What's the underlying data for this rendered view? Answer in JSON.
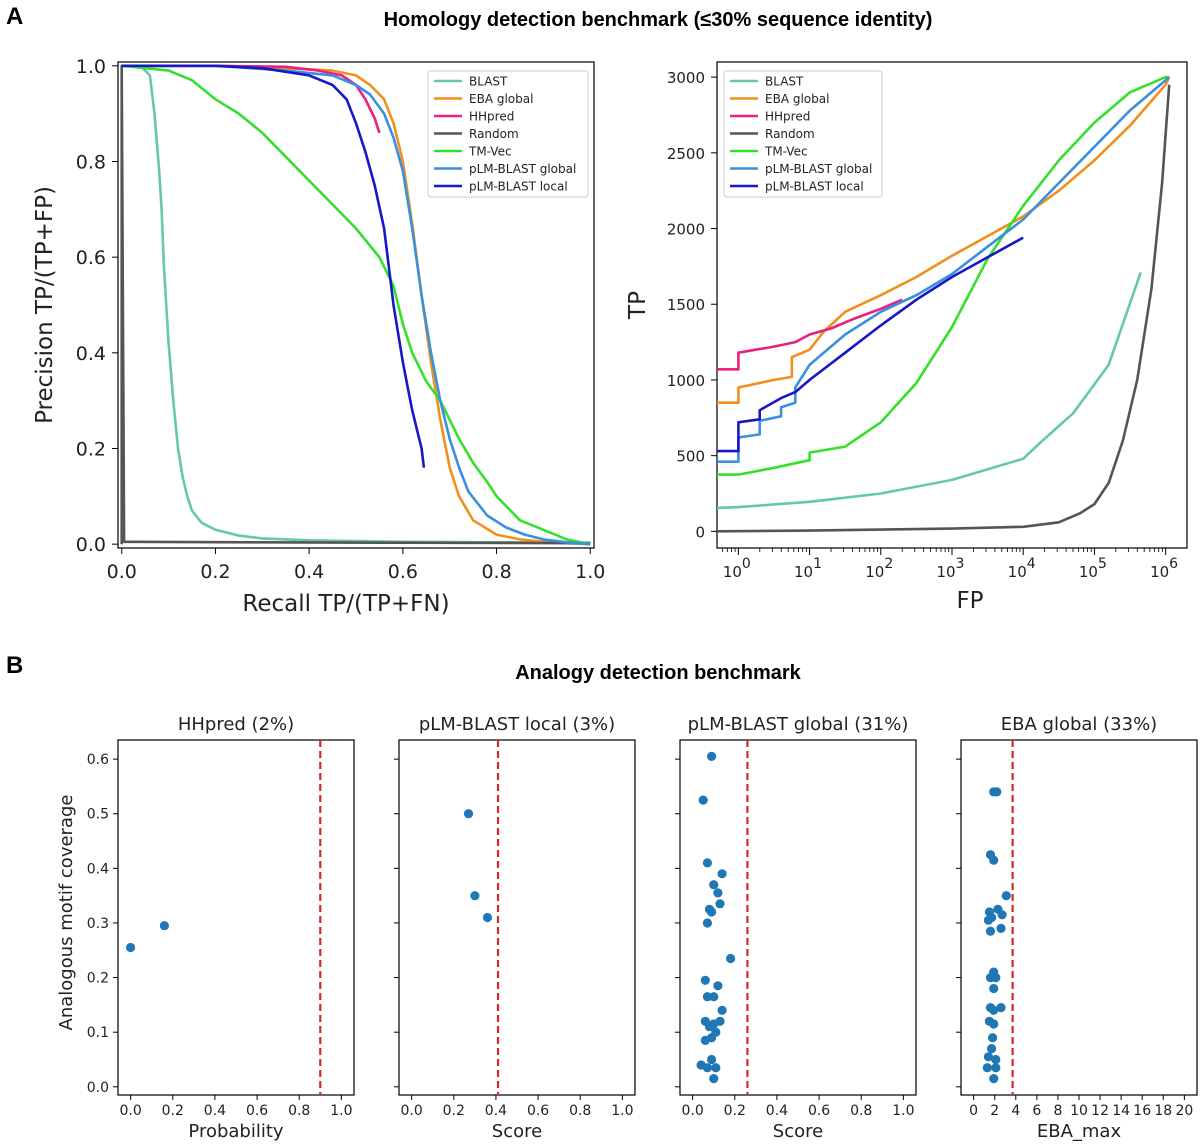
{
  "figure": {
    "panel_a_letter": "A",
    "panel_b_letter": "B",
    "panel_a_title": "Homology detection benchmark (≤30% sequence identity)",
    "panel_b_title": "Analogy detection benchmark"
  },
  "colors": {
    "BLAST": "#66c9a6",
    "EBA global": "#f0901e",
    "HHpred": "#e9207e",
    "Random": "#555555",
    "TM-Vec": "#33e02a",
    "pLM-BLAST global": "#3a90dc",
    "pLM-BLAST local": "#1717c8",
    "threshold": "#d62728",
    "points": "#1f77b4"
  },
  "chart_data": [
    {
      "type": "line",
      "xlabel": "Recall TP/(TP+FN)",
      "ylabel": "Precision TP/(TP+FP)",
      "xlim": [
        0,
        1
      ],
      "ylim": [
        0,
        1
      ],
      "xticks": [
        0,
        0.2,
        0.4,
        0.6,
        0.8,
        1.0
      ],
      "yticks": [
        0,
        0.2,
        0.4,
        0.6,
        0.8,
        1.0
      ],
      "xtick_labels": [
        "0.0",
        "0.2",
        "0.4",
        "0.6",
        "0.8",
        "1.0"
      ],
      "ytick_labels": [
        "0.0",
        "0.2",
        "0.4",
        "0.6",
        "0.8",
        "1.0"
      ],
      "legend_position": "top-right",
      "series": [
        {
          "name": "BLAST",
          "x": [
            0.04,
            0.06,
            0.07,
            0.08,
            0.085,
            0.09,
            0.1,
            0.11,
            0.12,
            0.13,
            0.14,
            0.15,
            0.17,
            0.2,
            0.25,
            0.3,
            0.4,
            0.6,
            0.8,
            1.0
          ],
          "y": [
            1.0,
            0.98,
            0.9,
            0.78,
            0.7,
            0.58,
            0.42,
            0.3,
            0.2,
            0.14,
            0.1,
            0.07,
            0.045,
            0.03,
            0.018,
            0.012,
            0.008,
            0.005,
            0.004,
            0.003
          ]
        },
        {
          "name": "EBA global",
          "x": [
            0.0,
            0.2,
            0.35,
            0.45,
            0.5,
            0.53,
            0.56,
            0.58,
            0.6,
            0.62,
            0.64,
            0.66,
            0.68,
            0.7,
            0.72,
            0.75,
            0.8,
            0.85,
            0.9,
            0.95,
            1.0
          ],
          "y": [
            1.0,
            1.0,
            0.995,
            0.99,
            0.98,
            0.96,
            0.93,
            0.88,
            0.8,
            0.67,
            0.52,
            0.38,
            0.26,
            0.16,
            0.1,
            0.05,
            0.02,
            0.01,
            0.005,
            0.002,
            0.0
          ]
        },
        {
          "name": "HHpred",
          "x": [
            0.0,
            0.2,
            0.35,
            0.42,
            0.47,
            0.5,
            0.52,
            0.54,
            0.55
          ],
          "y": [
            1.0,
            1.0,
            0.998,
            0.99,
            0.98,
            0.96,
            0.93,
            0.89,
            0.86
          ]
        },
        {
          "name": "Random",
          "x": [
            0.0,
            0.0,
            0.005,
            0.3,
            0.6,
            1.0
          ],
          "y": [
            0.0,
            1.0,
            0.005,
            0.004,
            0.003,
            0.002
          ]
        },
        {
          "name": "TM-Vec",
          "x": [
            0.0,
            0.1,
            0.15,
            0.2,
            0.25,
            0.3,
            0.35,
            0.4,
            0.45,
            0.5,
            0.55,
            0.58,
            0.6,
            0.62,
            0.65,
            0.68,
            0.7,
            0.72,
            0.75,
            0.78,
            0.8,
            0.85,
            0.9,
            0.95,
            1.0
          ],
          "y": [
            1.0,
            0.99,
            0.97,
            0.93,
            0.9,
            0.86,
            0.81,
            0.76,
            0.71,
            0.66,
            0.6,
            0.54,
            0.46,
            0.4,
            0.34,
            0.3,
            0.26,
            0.22,
            0.17,
            0.13,
            0.1,
            0.05,
            0.03,
            0.01,
            0.0
          ]
        },
        {
          "name": "pLM-BLAST global",
          "x": [
            0.0,
            0.2,
            0.35,
            0.45,
            0.5,
            0.53,
            0.56,
            0.58,
            0.6,
            0.62,
            0.64,
            0.66,
            0.68,
            0.7,
            0.72,
            0.74,
            0.78,
            0.82,
            0.86,
            0.9,
            0.95,
            1.0
          ],
          "y": [
            1.0,
            1.0,
            0.99,
            0.98,
            0.96,
            0.94,
            0.9,
            0.85,
            0.78,
            0.66,
            0.52,
            0.4,
            0.3,
            0.22,
            0.16,
            0.11,
            0.06,
            0.035,
            0.02,
            0.01,
            0.004,
            0.0
          ]
        },
        {
          "name": "pLM-BLAST local",
          "x": [
            0.0,
            0.2,
            0.3,
            0.4,
            0.45,
            0.48,
            0.5,
            0.52,
            0.54,
            0.56,
            0.57,
            0.58,
            0.59,
            0.6,
            0.61,
            0.62,
            0.63,
            0.64,
            0.645
          ],
          "y": [
            1.0,
            1.0,
            0.995,
            0.98,
            0.96,
            0.93,
            0.88,
            0.82,
            0.75,
            0.66,
            0.58,
            0.5,
            0.44,
            0.38,
            0.33,
            0.28,
            0.24,
            0.2,
            0.16
          ]
        }
      ]
    },
    {
      "type": "line",
      "xlabel": "FP",
      "ylabel": "TP",
      "xscale": "log",
      "xlim_log10": [
        -0.3,
        6.3
      ],
      "ylim": [
        -110,
        3100
      ],
      "xticks": [
        0,
        1,
        2,
        3,
        4,
        5,
        6
      ],
      "xtick_labels": [
        "10",
        "10",
        "10",
        "10",
        "10",
        "10",
        "10"
      ],
      "xtick_exponents": [
        "0",
        "1",
        "2",
        "3",
        "4",
        "5",
        "6"
      ],
      "yticks": [
        0,
        500,
        1000,
        1500,
        2000,
        2500,
        3000
      ],
      "ytick_labels": [
        "0",
        "500",
        "1000",
        "1500",
        "2000",
        "2500",
        "3000"
      ],
      "legend_position": "top-left",
      "series": [
        {
          "name": "BLAST",
          "log10_fp": [
            -0.3,
            0.0,
            1.0,
            2.0,
            3.0,
            4.0,
            4.25,
            4.7,
            5.2,
            5.65
          ],
          "tp": [
            155,
            160,
            195,
            250,
            340,
            480,
            590,
            780,
            1100,
            1710
          ]
        },
        {
          "name": "EBA global",
          "log10_fp": [
            -0.3,
            0.0,
            0.0,
            0.5,
            0.75,
            0.75,
            1.0,
            1.2,
            1.5,
            2.0,
            2.5,
            3.0,
            3.5,
            4.0,
            4.5,
            5.0,
            5.5,
            6.0,
            6.05
          ],
          "tp": [
            850,
            850,
            950,
            1000,
            1020,
            1150,
            1200,
            1320,
            1450,
            1560,
            1680,
            1820,
            1950,
            2080,
            2250,
            2450,
            2680,
            2950,
            3000
          ]
        },
        {
          "name": "HHpred",
          "log10_fp": [
            -0.3,
            0.0,
            0.0,
            0.5,
            0.8,
            1.0,
            1.3,
            1.6,
            2.0,
            2.3
          ],
          "tp": [
            1070,
            1070,
            1180,
            1220,
            1250,
            1300,
            1340,
            1400,
            1470,
            1530
          ]
        },
        {
          "name": "Random",
          "log10_fp": [
            -0.3,
            1.0,
            3.0,
            4.0,
            4.5,
            4.8,
            5.0,
            5.2,
            5.4,
            5.6,
            5.8,
            5.95,
            6.05
          ],
          "tp": [
            0,
            5,
            18,
            30,
            60,
            120,
            180,
            320,
            600,
            1000,
            1600,
            2300,
            2950
          ]
        },
        {
          "name": "TM-Vec",
          "log10_fp": [
            -0.3,
            0.0,
            0.5,
            1.0,
            1.0,
            1.5,
            2.0,
            2.5,
            3.0,
            3.5,
            4.0,
            4.5,
            5.0,
            5.5,
            6.0,
            6.05
          ],
          "tp": [
            375,
            375,
            420,
            470,
            520,
            560,
            720,
            980,
            1350,
            1800,
            2150,
            2450,
            2700,
            2900,
            3000,
            3000
          ]
        },
        {
          "name": "pLM-BLAST global",
          "log10_fp": [
            -0.3,
            0.0,
            0.0,
            0.3,
            0.3,
            0.6,
            0.6,
            0.8,
            0.8,
            1.0,
            1.5,
            2.0,
            2.5,
            3.0,
            3.5,
            4.0,
            4.5,
            5.0,
            5.5,
            6.0,
            6.05
          ],
          "tp": [
            460,
            460,
            620,
            640,
            730,
            760,
            820,
            850,
            950,
            1100,
            1300,
            1450,
            1560,
            1700,
            1880,
            2060,
            2300,
            2540,
            2780,
            2980,
            3000
          ]
        },
        {
          "name": "pLM-BLAST local",
          "log10_fp": [
            -0.3,
            0.0,
            0.0,
            0.3,
            0.3,
            0.6,
            0.8,
            1.0,
            1.5,
            2.0,
            2.5,
            3.0,
            3.5,
            4.0
          ],
          "tp": [
            530,
            530,
            720,
            740,
            800,
            880,
            920,
            1000,
            1180,
            1360,
            1530,
            1680,
            1810,
            1940
          ]
        }
      ]
    },
    {
      "type": "scatter",
      "title": "HHpred (2%)",
      "xlabel": "Probability",
      "ylabel": "Analogous motif coverage",
      "xlim": [
        -0.06,
        1.06
      ],
      "ylim": [
        -0.015,
        0.635
      ],
      "xticks": [
        0,
        0.2,
        0.4,
        0.6,
        0.8,
        1.0
      ],
      "xtick_labels": [
        "0.0",
        "0.2",
        "0.4",
        "0.6",
        "0.8",
        "1.0"
      ],
      "yticks": [
        0,
        0.1,
        0.2,
        0.3,
        0.4,
        0.5,
        0.6
      ],
      "ytick_labels": [
        "0.0",
        "0.1",
        "0.2",
        "0.3",
        "0.4",
        "0.5",
        "0.6"
      ],
      "threshold": 0.9,
      "x": [
        0.0,
        0.16
      ],
      "y": [
        0.255,
        0.295
      ]
    },
    {
      "type": "scatter",
      "title": "pLM-BLAST local (3%)",
      "xlabel": "Score",
      "xlim": [
        -0.06,
        1.06
      ],
      "ylim": [
        -0.015,
        0.635
      ],
      "xticks": [
        0,
        0.2,
        0.4,
        0.6,
        0.8,
        1.0
      ],
      "xtick_labels": [
        "0.0",
        "0.2",
        "0.4",
        "0.6",
        "0.8",
        "1.0"
      ],
      "threshold": 0.41,
      "x": [
        0.27,
        0.3,
        0.36
      ],
      "y": [
        0.5,
        0.35,
        0.31
      ]
    },
    {
      "type": "scatter",
      "title": "pLM-BLAST global (31%)",
      "xlabel": "Score",
      "xlim": [
        -0.06,
        1.06
      ],
      "ylim": [
        -0.015,
        0.635
      ],
      "xticks": [
        0,
        0.2,
        0.4,
        0.6,
        0.8,
        1.0
      ],
      "xtick_labels": [
        "0.0",
        "0.2",
        "0.4",
        "0.6",
        "0.8",
        "1.0"
      ],
      "threshold": 0.26,
      "x": [
        0.09,
        0.05,
        0.07,
        0.14,
        0.1,
        0.08,
        0.12,
        0.09,
        0.13,
        0.07,
        0.18,
        0.06,
        0.12,
        0.1,
        0.07,
        0.14,
        0.06,
        0.1,
        0.08,
        0.13,
        0.11,
        0.09,
        0.06,
        0.09,
        0.04,
        0.11,
        0.07,
        0.1
      ],
      "y": [
        0.605,
        0.525,
        0.41,
        0.39,
        0.37,
        0.325,
        0.355,
        0.32,
        0.335,
        0.3,
        0.235,
        0.195,
        0.185,
        0.165,
        0.165,
        0.14,
        0.12,
        0.115,
        0.11,
        0.12,
        0.1,
        0.09,
        0.085,
        0.05,
        0.04,
        0.035,
        0.035,
        0.015
      ]
    },
    {
      "type": "scatter",
      "title": "EBA global  (33%)",
      "xlabel": "EBA_max",
      "xlim": [
        -1.2,
        21.2
      ],
      "ylim": [
        -0.015,
        0.635
      ],
      "xticks": [
        0,
        2,
        4,
        6,
        8,
        10,
        12,
        14,
        16,
        18,
        20
      ],
      "xtick_labels": [
        "0",
        "2",
        "4",
        "6",
        "8",
        "10",
        "12",
        "14",
        "16",
        "18",
        "20"
      ],
      "threshold": 3.7,
      "x": [
        1.9,
        2.2,
        1.6,
        1.9,
        3.1,
        1.5,
        2.3,
        1.7,
        2.7,
        1.4,
        2.6,
        1.6,
        1.9,
        1.6,
        2.1,
        1.9,
        2.6,
        1.6,
        1.9,
        1.5,
        1.9,
        1.8,
        1.4,
        2.1,
        1.7,
        1.3,
        2.1,
        1.9
      ],
      "y": [
        0.54,
        0.54,
        0.425,
        0.415,
        0.35,
        0.32,
        0.325,
        0.31,
        0.315,
        0.305,
        0.29,
        0.285,
        0.21,
        0.2,
        0.2,
        0.18,
        0.145,
        0.145,
        0.14,
        0.12,
        0.115,
        0.09,
        0.055,
        0.05,
        0.07,
        0.035,
        0.035,
        0.015
      ]
    }
  ]
}
